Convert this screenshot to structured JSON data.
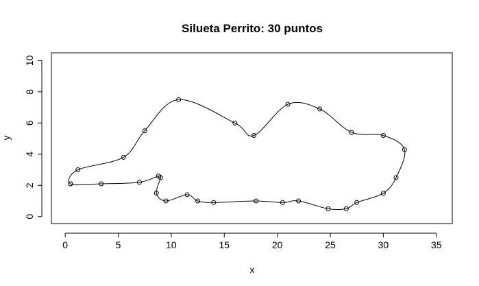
{
  "chart_data": {
    "type": "scatter",
    "title": "Silueta Perrito:  30 puntos",
    "xlabel": "x",
    "ylabel": "y",
    "xlim": [
      -1.3,
      36.5
    ],
    "ylim": [
      -0.45,
      10.5
    ],
    "xticks": [
      0,
      5,
      10,
      15,
      20,
      25,
      30,
      35
    ],
    "yticks": [
      0,
      2,
      4,
      6,
      8,
      10
    ],
    "grid": false,
    "legend": "none",
    "closed_curve": true,
    "points": [
      {
        "x": 0.5,
        "y": 2.1
      },
      {
        "x": 1.2,
        "y": 3.0
      },
      {
        "x": 5.5,
        "y": 3.8
      },
      {
        "x": 7.5,
        "y": 5.5
      },
      {
        "x": 10.7,
        "y": 7.5
      },
      {
        "x": 16.0,
        "y": 6.0
      },
      {
        "x": 17.8,
        "y": 5.2
      },
      {
        "x": 21.0,
        "y": 7.2
      },
      {
        "x": 24.0,
        "y": 6.9
      },
      {
        "x": 27.0,
        "y": 5.4
      },
      {
        "x": 30.0,
        "y": 5.2
      },
      {
        "x": 32.0,
        "y": 4.3
      },
      {
        "x": 31.2,
        "y": 2.5
      },
      {
        "x": 30.0,
        "y": 1.5
      },
      {
        "x": 27.5,
        "y": 0.9
      },
      {
        "x": 26.5,
        "y": 0.5
      },
      {
        "x": 24.8,
        "y": 0.5
      },
      {
        "x": 22.0,
        "y": 1.0
      },
      {
        "x": 20.5,
        "y": 0.9
      },
      {
        "x": 18.0,
        "y": 1.0
      },
      {
        "x": 14.0,
        "y": 0.9
      },
      {
        "x": 12.5,
        "y": 1.0
      },
      {
        "x": 11.5,
        "y": 1.4
      },
      {
        "x": 9.5,
        "y": 1.0
      },
      {
        "x": 8.6,
        "y": 1.5
      },
      {
        "x": 9.0,
        "y": 2.5
      },
      {
        "x": 8.8,
        "y": 2.6
      },
      {
        "x": 7.0,
        "y": 2.2
      },
      {
        "x": 3.4,
        "y": 2.1
      },
      {
        "x": 0.5,
        "y": 2.1
      }
    ]
  }
}
